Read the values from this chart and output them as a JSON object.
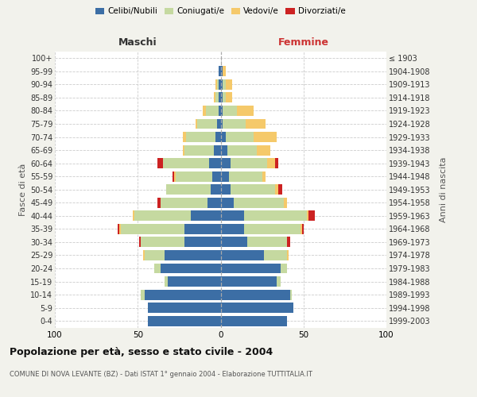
{
  "age_groups": [
    "0-4",
    "5-9",
    "10-14",
    "15-19",
    "20-24",
    "25-29",
    "30-34",
    "35-39",
    "40-44",
    "45-49",
    "50-54",
    "55-59",
    "60-64",
    "65-69",
    "70-74",
    "75-79",
    "80-84",
    "85-89",
    "90-94",
    "95-99",
    "100+"
  ],
  "birth_years": [
    "1999-2003",
    "1994-1998",
    "1989-1993",
    "1984-1988",
    "1979-1983",
    "1974-1978",
    "1969-1973",
    "1964-1968",
    "1959-1963",
    "1954-1958",
    "1949-1953",
    "1944-1948",
    "1939-1943",
    "1934-1938",
    "1929-1933",
    "1924-1928",
    "1919-1923",
    "1914-1918",
    "1909-1913",
    "1904-1908",
    "≤ 1903"
  ],
  "colors": {
    "celibi": "#3c6ea5",
    "coniugati": "#c5d9a0",
    "vedovi": "#f5c96a",
    "divorziati": "#cc2222"
  },
  "males": {
    "celibi": [
      44,
      44,
      46,
      32,
      36,
      34,
      22,
      22,
      18,
      8,
      6,
      5,
      7,
      4,
      3,
      2,
      1,
      1,
      1,
      1,
      0
    ],
    "coniugati": [
      0,
      0,
      2,
      2,
      4,
      12,
      26,
      38,
      34,
      28,
      27,
      22,
      28,
      18,
      18,
      12,
      8,
      2,
      1,
      0,
      0
    ],
    "vedovi": [
      0,
      0,
      0,
      0,
      0,
      1,
      0,
      1,
      1,
      0,
      0,
      1,
      0,
      1,
      2,
      1,
      2,
      1,
      1,
      0,
      0
    ],
    "divorziati": [
      0,
      0,
      0,
      0,
      0,
      0,
      1,
      1,
      0,
      2,
      0,
      1,
      3,
      0,
      0,
      0,
      0,
      0,
      0,
      0,
      0
    ]
  },
  "females": {
    "celibi": [
      40,
      44,
      42,
      34,
      36,
      26,
      16,
      14,
      14,
      8,
      6,
      5,
      6,
      4,
      3,
      1,
      1,
      1,
      1,
      1,
      0
    ],
    "coniugati": [
      0,
      0,
      1,
      2,
      4,
      14,
      24,
      34,
      38,
      30,
      27,
      20,
      22,
      18,
      17,
      14,
      9,
      2,
      2,
      0,
      0
    ],
    "vedovi": [
      0,
      0,
      0,
      0,
      0,
      1,
      0,
      1,
      1,
      2,
      2,
      2,
      5,
      8,
      14,
      12,
      10,
      4,
      4,
      2,
      0
    ],
    "divorziati": [
      0,
      0,
      0,
      0,
      0,
      0,
      2,
      1,
      4,
      0,
      2,
      0,
      2,
      0,
      0,
      0,
      0,
      0,
      0,
      0,
      0
    ]
  },
  "xlim": 100,
  "title": "Popolazione per età, sesso e stato civile - 2004",
  "subtitle": "COMUNE DI NOVA LEVANTE (BZ) - Dati ISTAT 1° gennaio 2004 - Elaborazione TUTTITALIA.IT",
  "xlabel_left": "Maschi",
  "xlabel_right": "Femmine",
  "ylabel_left": "Fasce di età",
  "ylabel_right": "Anni di nascita",
  "bg_color": "#f2f2ec",
  "plot_bg": "#ffffff",
  "grid_color": "#cccccc",
  "center_line_color": "#aaaaaa",
  "maschi_color": "#333333",
  "femmine_color": "#cc3333"
}
